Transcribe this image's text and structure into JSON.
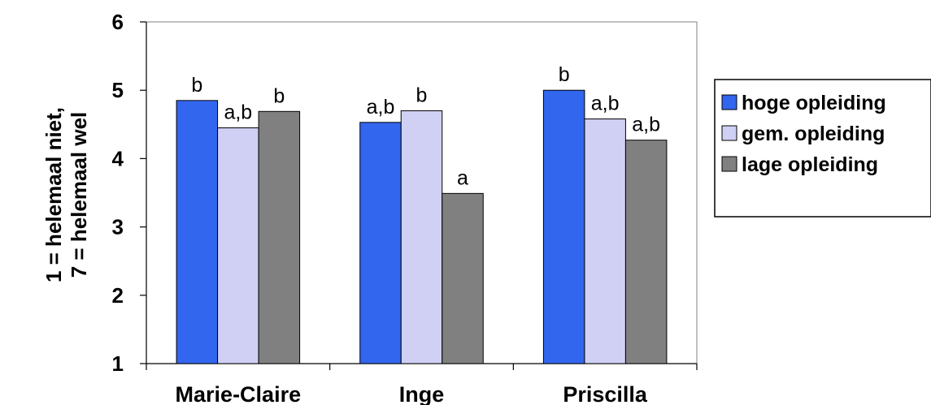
{
  "chart_data": {
    "type": "bar",
    "categories": [
      "Marie-Claire",
      "Inge",
      "Priscilla"
    ],
    "ylabel_lines": [
      "1 = helemaal niet,",
      "7 = helemaal wel"
    ],
    "xlabel": "",
    "ylim": [
      1,
      6
    ],
    "yticks": [
      "1",
      "2",
      "3",
      "4",
      "5",
      "6"
    ],
    "grid": false,
    "legend_position": "right",
    "series": [
      {
        "name": "hoge opleiding",
        "color": "#3366ee",
        "values": [
          4.85,
          4.53,
          5.0
        ],
        "labels": [
          "b",
          "a,b",
          "b"
        ]
      },
      {
        "name": "gem. opleiding",
        "color": "#d0d0f4",
        "values": [
          4.45,
          4.7,
          4.58
        ],
        "labels": [
          "a,b",
          "b",
          "a,b"
        ]
      },
      {
        "name": "lage opleiding",
        "color": "#808080",
        "values": [
          4.69,
          3.49,
          4.27
        ],
        "labels": [
          "b",
          "a",
          "a,b"
        ]
      }
    ]
  }
}
